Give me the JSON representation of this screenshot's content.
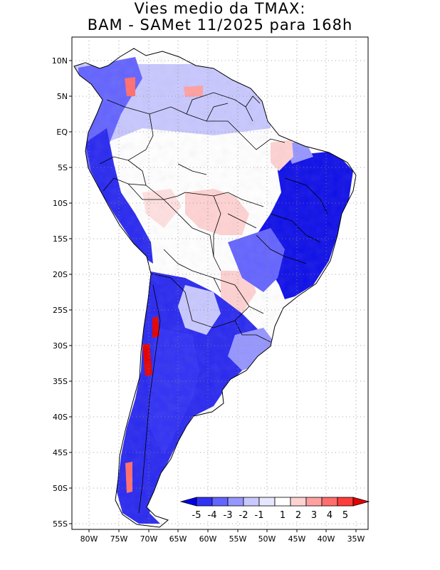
{
  "title": {
    "line1": "Vies medio da TMAX:",
    "line2": "BAM - SAMet 11/2025  para 168h"
  },
  "map": {
    "lat_ticks": [
      "10N",
      "5N",
      "EQ",
      "5S",
      "10S",
      "15S",
      "20S",
      "25S",
      "30S",
      "35S",
      "40S",
      "45S",
      "50S",
      "55S"
    ],
    "lon_ticks": [
      "80W",
      "75W",
      "70W",
      "65W",
      "60W",
      "55W",
      "50W",
      "45W",
      "40W",
      "35W"
    ],
    "lat_range": [
      -56,
      13
    ],
    "lon_range": [
      -83,
      -35
    ]
  },
  "colorbar": {
    "labels": [
      "-5",
      "-4",
      "-3",
      "-2",
      "-1",
      "1",
      "2",
      "3",
      "4",
      "5"
    ],
    "colors": [
      "#0000e6",
      "#3232f5",
      "#6464ff",
      "#9696ff",
      "#c8c8ff",
      "#e6e6ff",
      "#ffffff",
      "#ffd2d2",
      "#ffa0a0",
      "#ff6e6e",
      "#ff3c3c",
      "#e60000"
    ]
  }
}
